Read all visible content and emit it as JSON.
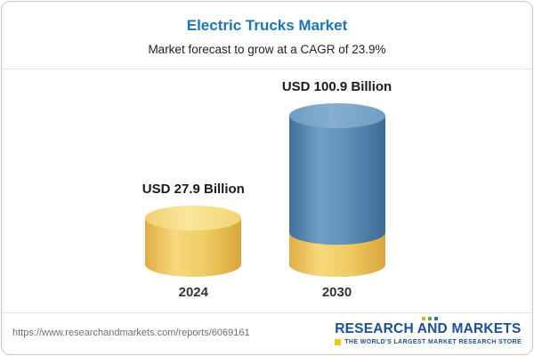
{
  "header": {
    "title": "Electric Trucks Market",
    "subtitle": "Market forecast to grow at a CAGR of 23.9%"
  },
  "chart_data": {
    "type": "bar",
    "title": "Electric Trucks Market",
    "subtitle": "Market forecast to grow at a CAGR of 23.9%",
    "categories": [
      "2024",
      "2030"
    ],
    "values": [
      27.9,
      100.9
    ],
    "unit": "USD Billion",
    "value_labels": [
      "USD 27.9 Billion",
      "USD 100.9 Billion"
    ],
    "cagr_percent": 23.9,
    "ylim": [
      0,
      110
    ],
    "grid": false,
    "legend": false,
    "bar_colors": [
      "#F0CB62",
      "#5D8FB8"
    ],
    "stacked_base_color": "#F0CB62"
  },
  "colors": {
    "title_blue": "#1B74B8",
    "logo_blue": "#1D4F91",
    "logo_yellow": "#F5C518",
    "bar_yellow": "#F0CB62",
    "bar_blue": "#5D8FB8"
  },
  "footer": {
    "url": "https://www.researchandmarkets.com/reports/6069161",
    "logo": {
      "title": "RESEARCH AND MARKETS",
      "tagline": "THE WORLD'S LARGEST MARKET RESEARCH STORE"
    }
  }
}
